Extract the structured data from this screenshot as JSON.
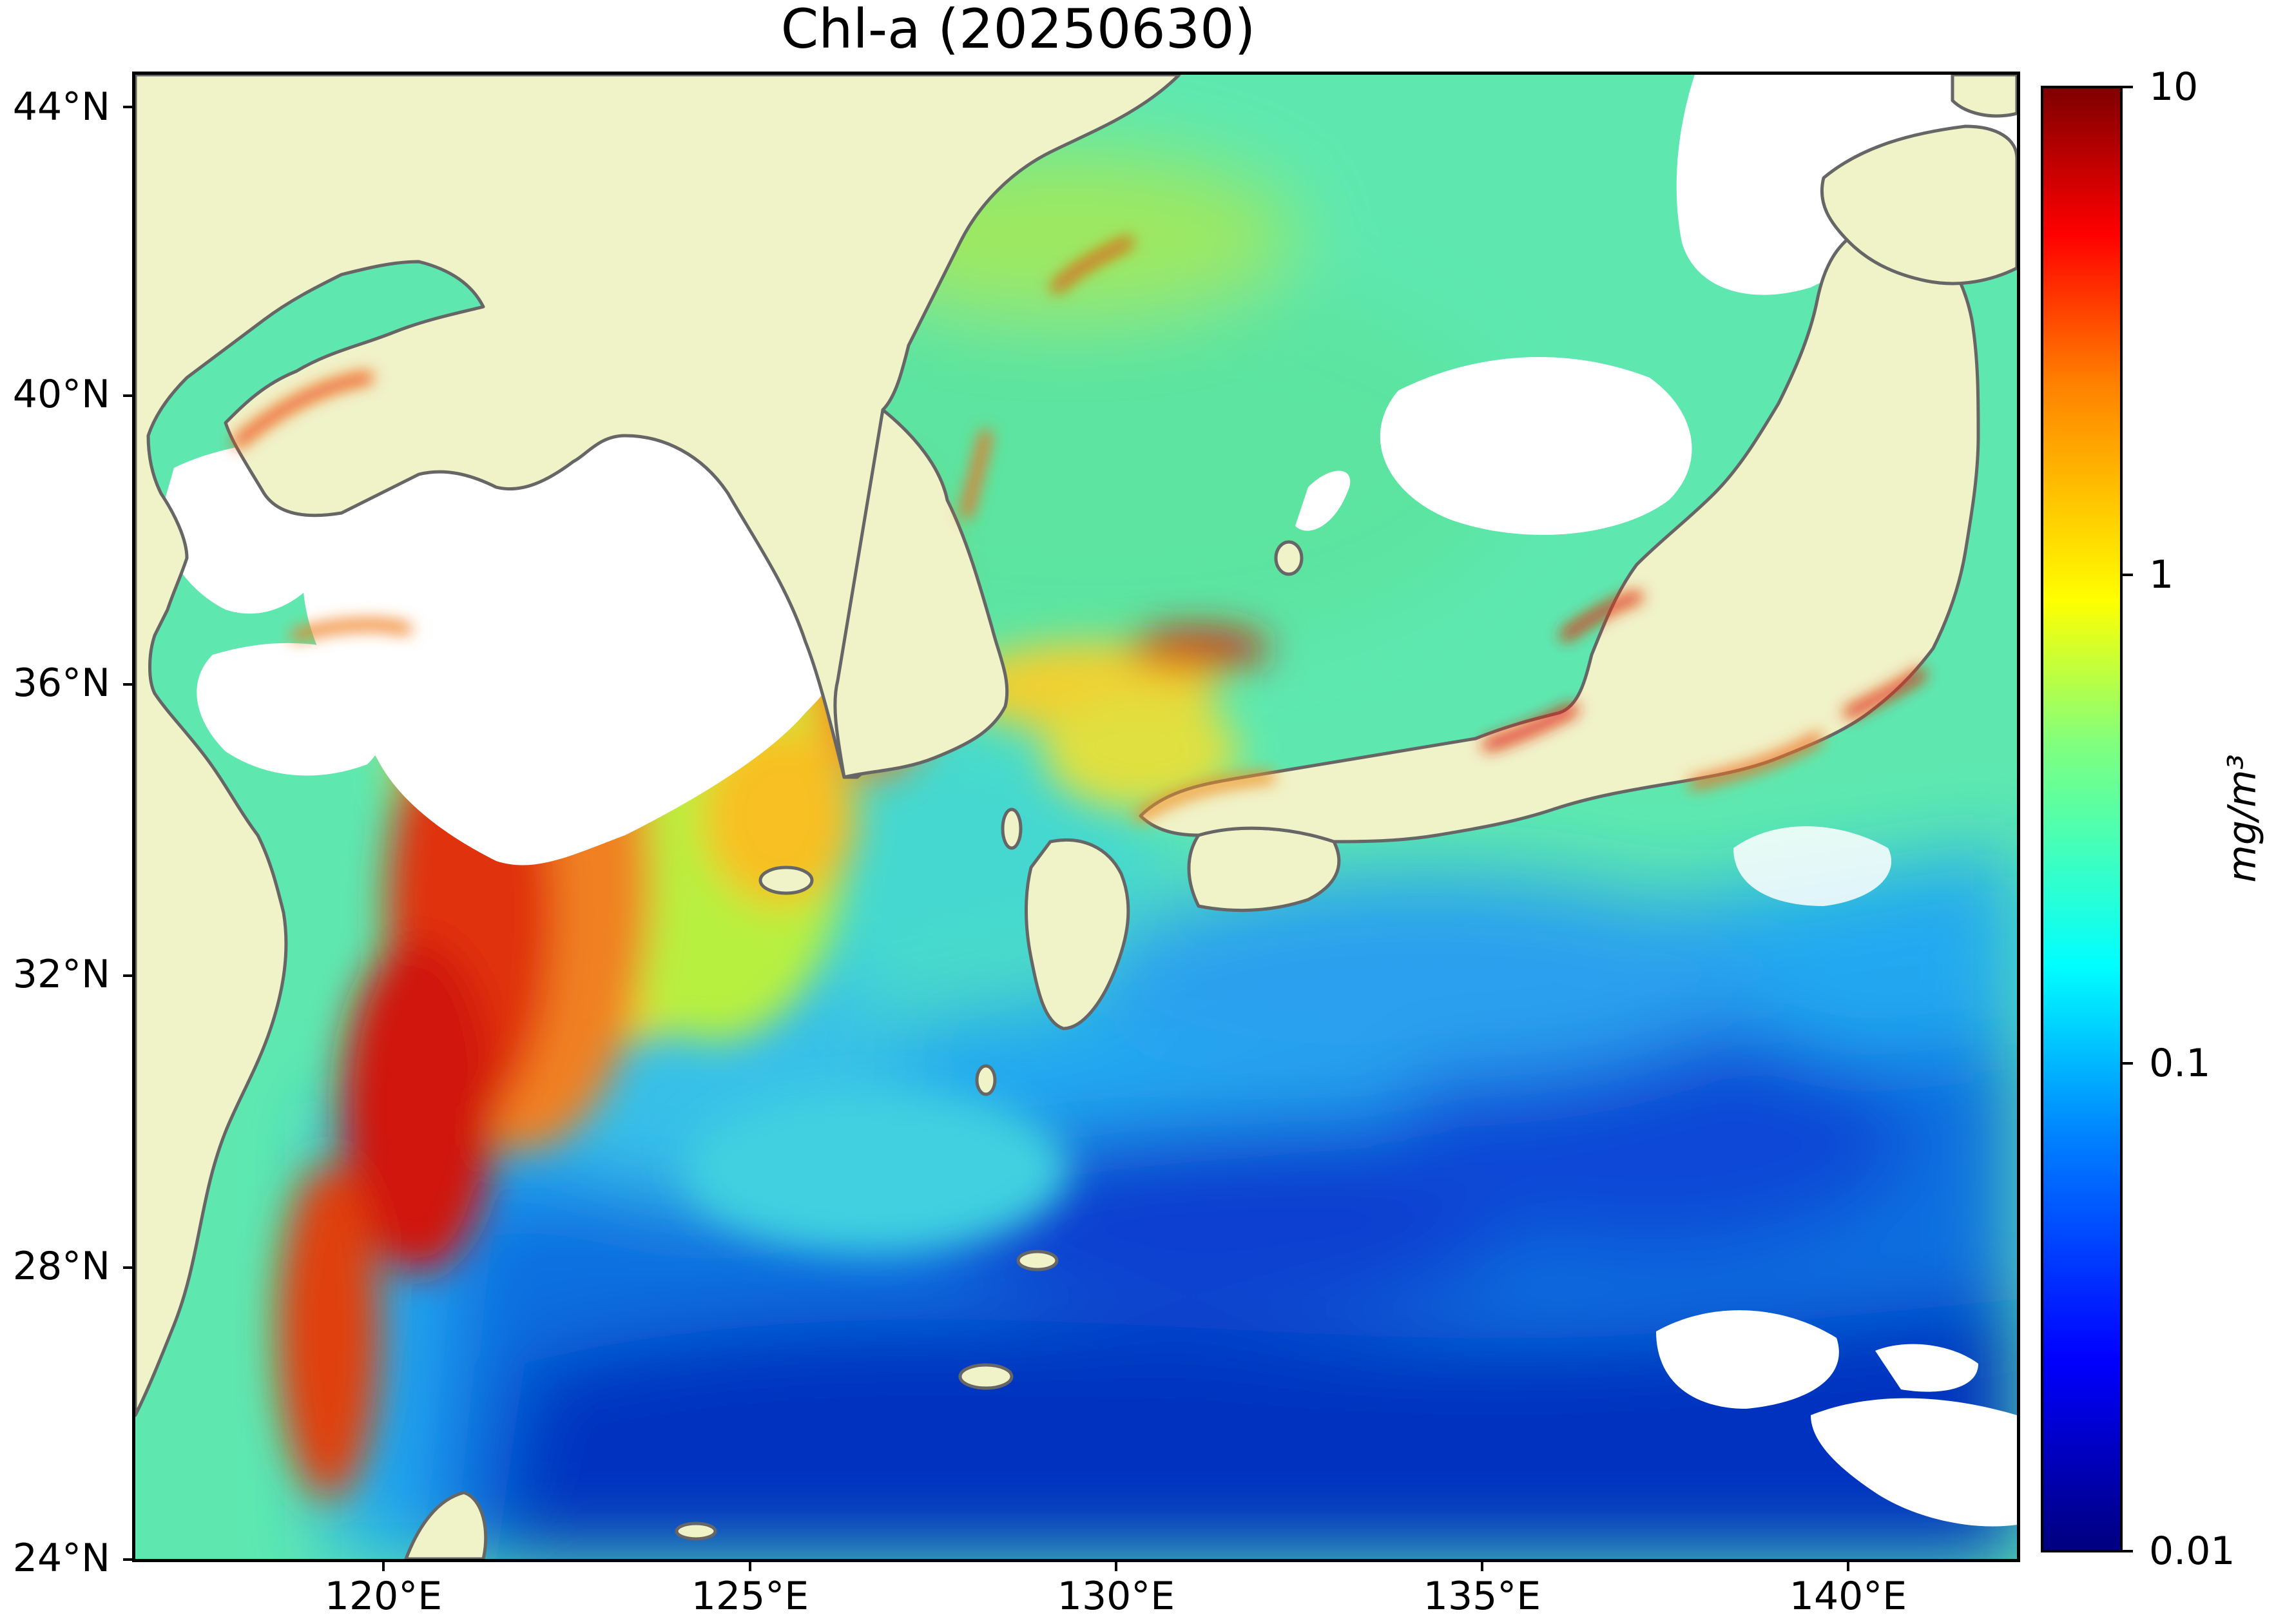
{
  "title": "Chl-a (20250630)",
  "map": {
    "lat_ticks": [
      "44°N",
      "40°N",
      "36°N",
      "32°N",
      "28°N",
      "24°N"
    ],
    "lon_ticks": [
      "120°E",
      "125°E",
      "130°E",
      "135°E",
      "140°E"
    ],
    "colors": {
      "land": "#f0f2c8",
      "nodata": "#ffffff",
      "coast": "#666666"
    }
  },
  "colorbar": {
    "tick_labels": [
      "10",
      "1",
      "0.1",
      "0.01"
    ],
    "unit_label": "mg/m³",
    "scale": "log",
    "range": [
      0.01,
      10
    ],
    "colormap": "jet"
  }
}
